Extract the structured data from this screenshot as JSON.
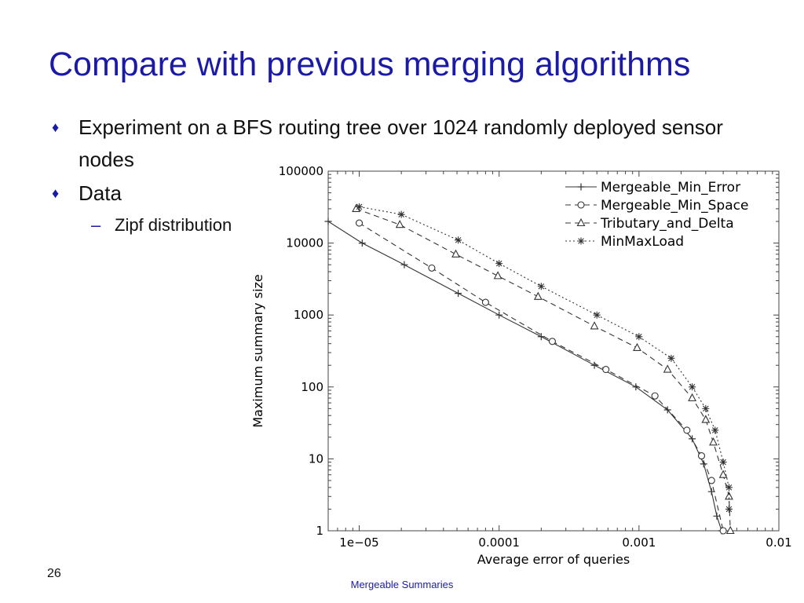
{
  "slide": {
    "title": "Compare with previous merging algorithms",
    "bullets": [
      {
        "marker": "♦",
        "text": "Experiment on a BFS routing tree over 1024 randomly deployed sensor nodes"
      },
      {
        "marker": "♦",
        "text": "Data"
      }
    ],
    "sub_bullet": {
      "marker": "–",
      "text": "Zipf distribution"
    },
    "page_number": "26",
    "footer": "Mergeable Summaries",
    "accent_color": "#1a1aa6"
  },
  "chart_data": {
    "type": "line",
    "xlabel": "Average error of queries",
    "ylabel": "Maximum summary size",
    "x_scale": "log",
    "y_scale": "log",
    "xlim": [
      6e-06,
      0.01
    ],
    "ylim": [
      1,
      100000
    ],
    "x_ticks": [
      {
        "value": 1e-05,
        "label": "1e−05"
      },
      {
        "value": 0.0001,
        "label": "0.0001"
      },
      {
        "value": 0.001,
        "label": "0.001"
      },
      {
        "value": 0.01,
        "label": "0.01"
      }
    ],
    "y_ticks": [
      {
        "value": 1,
        "label": "1"
      },
      {
        "value": 10,
        "label": "10"
      },
      {
        "value": 100,
        "label": "100"
      },
      {
        "value": 1000,
        "label": "1000"
      },
      {
        "value": 10000,
        "label": "10000"
      },
      {
        "value": 100000,
        "label": "100000"
      }
    ],
    "grid": false,
    "legend_position": "top-right",
    "series": [
      {
        "name": "Mergeable_Min_Error",
        "style": "solid",
        "marker": "plus",
        "color": "#333333",
        "points": [
          [
            6e-06,
            20000
          ],
          [
            1.05e-05,
            10000
          ],
          [
            2.1e-05,
            5000
          ],
          [
            5.1e-05,
            2000
          ],
          [
            0.0001,
            1000
          ],
          [
            0.0002,
            500
          ],
          [
            0.00048,
            200
          ],
          [
            0.00095,
            100
          ],
          [
            0.0016,
            48
          ],
          [
            0.0024,
            19
          ],
          [
            0.0029,
            8.5
          ],
          [
            0.0033,
            3.5
          ],
          [
            0.0036,
            1.6
          ],
          [
            0.0039,
            1
          ]
        ]
      },
      {
        "name": "Mergeable_Min_Space",
        "style": "dashed",
        "marker": "circle",
        "color": "#333333",
        "points": [
          [
            1e-05,
            19000
          ],
          [
            3.3e-05,
            4500
          ],
          [
            8e-05,
            1500
          ],
          [
            0.00024,
            430
          ],
          [
            0.00058,
            175
          ],
          [
            0.0013,
            75
          ],
          [
            0.0022,
            25
          ],
          [
            0.0028,
            11
          ],
          [
            0.0033,
            5
          ],
          [
            0.004,
            1
          ]
        ]
      },
      {
        "name": "Tributary_and_Delta",
        "style": "dashed",
        "marker": "triangle",
        "color": "#333333",
        "points": [
          [
            9.5e-06,
            30000
          ],
          [
            1.95e-05,
            18000
          ],
          [
            4.9e-05,
            7000
          ],
          [
            9.8e-05,
            3500
          ],
          [
            0.00019,
            1800
          ],
          [
            0.00048,
            700
          ],
          [
            0.00097,
            350
          ],
          [
            0.0016,
            175
          ],
          [
            0.0024,
            70
          ],
          [
            0.003,
            35
          ],
          [
            0.0034,
            17
          ],
          [
            0.004,
            6
          ],
          [
            0.0044,
            3
          ],
          [
            0.0045,
            1
          ]
        ]
      },
      {
        "name": "MinMaxLoad",
        "style": "dotted",
        "marker": "star",
        "color": "#333333",
        "points": [
          [
            1e-05,
            32000
          ],
          [
            2e-05,
            25000
          ],
          [
            5.1e-05,
            11000
          ],
          [
            0.0001,
            5200
          ],
          [
            0.0002,
            2500
          ],
          [
            0.0005,
            1000
          ],
          [
            0.001,
            500
          ],
          [
            0.0017,
            250
          ],
          [
            0.0024,
            100
          ],
          [
            0.003,
            50
          ],
          [
            0.0035,
            25
          ],
          [
            0.004,
            9
          ],
          [
            0.0044,
            4
          ],
          [
            0.0044,
            2
          ]
        ]
      }
    ]
  }
}
